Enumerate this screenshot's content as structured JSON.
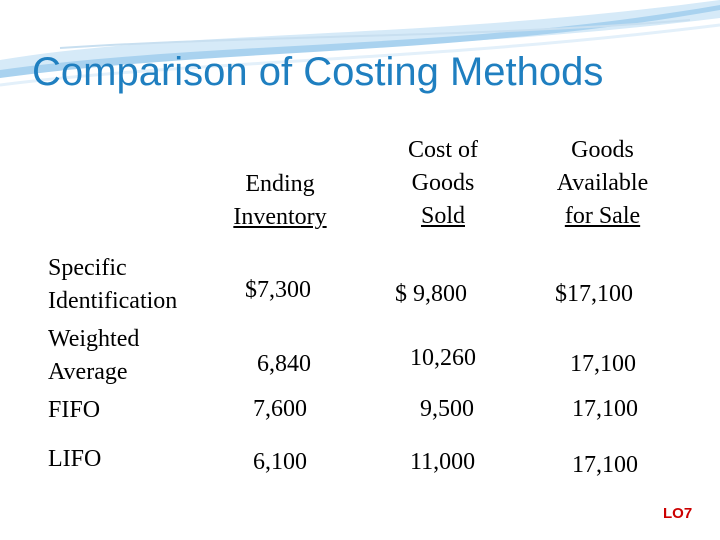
{
  "slide": {
    "title": "Comparison of Costing Methods",
    "footer_tag": "LO7",
    "accent_color": "#1f7fc0"
  },
  "table": {
    "headers": {
      "ending_inventory": [
        "Ending",
        "Inventory"
      ],
      "cogs": [
        "Cost of",
        "Goods",
        "Sold"
      ],
      "gafs": [
        "Goods",
        "Available",
        "for Sale"
      ]
    },
    "rows": [
      {
        "label": [
          "Specific",
          "Identification"
        ],
        "ending_inventory": "$7,300",
        "cogs": "$  9,800",
        "gafs": "$17,100"
      },
      {
        "label": [
          "Weighted",
          "Average"
        ],
        "ending_inventory": "6,840",
        "cogs": "10,260",
        "gafs": "17,100"
      },
      {
        "label": [
          "FIFO"
        ],
        "ending_inventory": "7,600",
        "cogs": "9,500",
        "gafs": "17,100"
      },
      {
        "label": [
          "LIFO"
        ],
        "ending_inventory": "6,100",
        "cogs": "11,000",
        "gafs": "17,100"
      }
    ]
  }
}
